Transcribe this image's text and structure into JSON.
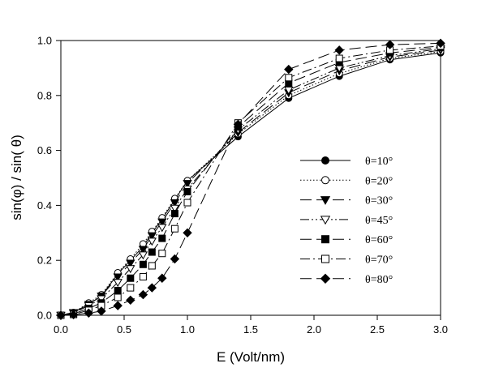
{
  "chart_data": {
    "type": "line",
    "xlabel": "E (Volt/nm)",
    "ylabel": "sin(φ) / sin( θ)",
    "xlim": [
      0.0,
      3.0
    ],
    "ylim": [
      0.0,
      1.0
    ],
    "x_ticks": [
      "0.0",
      "0.5",
      "1.0",
      "1.5",
      "2.0",
      "2.5",
      "3.0"
    ],
    "y_ticks": [
      "0.0",
      "0.2",
      "0.4",
      "0.6",
      "0.8",
      "1.0"
    ],
    "grid": false,
    "legend_position": "center-right",
    "series": [
      {
        "name": "θ=10°",
        "marker": "circle-filled",
        "dash": "solid",
        "x": [
          0.0,
          0.1,
          0.22,
          0.32,
          0.45,
          0.55,
          0.65,
          0.72,
          0.8,
          0.9,
          1.0,
          1.4,
          1.8,
          2.2,
          2.6,
          3.0
        ],
        "y": [
          0.0,
          0.01,
          0.04,
          0.07,
          0.15,
          0.2,
          0.25,
          0.3,
          0.35,
          0.42,
          0.49,
          0.65,
          0.79,
          0.87,
          0.93,
          0.955
        ]
      },
      {
        "name": "θ=20°",
        "marker": "circle-open",
        "dash": "dotted",
        "x": [
          0.0,
          0.1,
          0.22,
          0.32,
          0.45,
          0.55,
          0.65,
          0.72,
          0.8,
          0.9,
          1.0,
          1.4,
          1.8,
          2.2,
          2.6,
          3.0
        ],
        "y": [
          0.0,
          0.01,
          0.045,
          0.075,
          0.155,
          0.205,
          0.26,
          0.305,
          0.355,
          0.425,
          0.49,
          0.66,
          0.8,
          0.88,
          0.935,
          0.96
        ]
      },
      {
        "name": "θ=30°",
        "marker": "triangle-down-filled",
        "dash": "long-dash",
        "x": [
          0.0,
          0.1,
          0.22,
          0.32,
          0.45,
          0.55,
          0.65,
          0.72,
          0.8,
          0.9,
          1.0,
          1.4,
          1.8,
          2.2,
          2.6,
          3.0
        ],
        "y": [
          0.0,
          0.01,
          0.04,
          0.07,
          0.14,
          0.19,
          0.24,
          0.29,
          0.34,
          0.41,
          0.48,
          0.665,
          0.81,
          0.89,
          0.94,
          0.965
        ]
      },
      {
        "name": "θ=45°",
        "marker": "triangle-down-open",
        "dash": "dash-dot-dot",
        "x": [
          0.0,
          0.1,
          0.22,
          0.32,
          0.45,
          0.55,
          0.65,
          0.72,
          0.8,
          0.9,
          1.0,
          1.4,
          1.8,
          2.2,
          2.6,
          3.0
        ],
        "y": [
          0.0,
          0.008,
          0.035,
          0.06,
          0.12,
          0.17,
          0.22,
          0.27,
          0.32,
          0.39,
          0.46,
          0.675,
          0.82,
          0.9,
          0.945,
          0.97
        ]
      },
      {
        "name": "θ=60°",
        "marker": "square-filled",
        "dash": "long-dash",
        "x": [
          0.0,
          0.1,
          0.22,
          0.32,
          0.45,
          0.55,
          0.65,
          0.72,
          0.8,
          0.9,
          1.0,
          1.4,
          1.8,
          2.2,
          2.6,
          3.0
        ],
        "y": [
          0.0,
          0.005,
          0.025,
          0.045,
          0.09,
          0.135,
          0.185,
          0.23,
          0.28,
          0.37,
          0.45,
          0.685,
          0.845,
          0.92,
          0.955,
          0.975
        ]
      },
      {
        "name": "θ=70°",
        "marker": "square-open",
        "dash": "dash-dot",
        "x": [
          0.0,
          0.1,
          0.22,
          0.32,
          0.45,
          0.55,
          0.65,
          0.72,
          0.8,
          0.9,
          1.0,
          1.4,
          1.8,
          2.2,
          2.6,
          3.0
        ],
        "y": [
          0.0,
          0.003,
          0.018,
          0.035,
          0.065,
          0.1,
          0.14,
          0.18,
          0.225,
          0.315,
          0.41,
          0.7,
          0.865,
          0.935,
          0.965,
          0.98
        ]
      },
      {
        "name": "θ=80°",
        "marker": "diamond-filled",
        "dash": "long-dash",
        "x": [
          0.0,
          0.1,
          0.22,
          0.32,
          0.45,
          0.55,
          0.65,
          0.72,
          0.8,
          0.9,
          1.0,
          1.4,
          1.8,
          2.2,
          2.6,
          3.0
        ],
        "y": [
          0.0,
          0.002,
          0.008,
          0.015,
          0.035,
          0.055,
          0.075,
          0.1,
          0.135,
          0.205,
          0.3,
          0.695,
          0.895,
          0.965,
          0.985,
          0.99
        ]
      }
    ]
  }
}
